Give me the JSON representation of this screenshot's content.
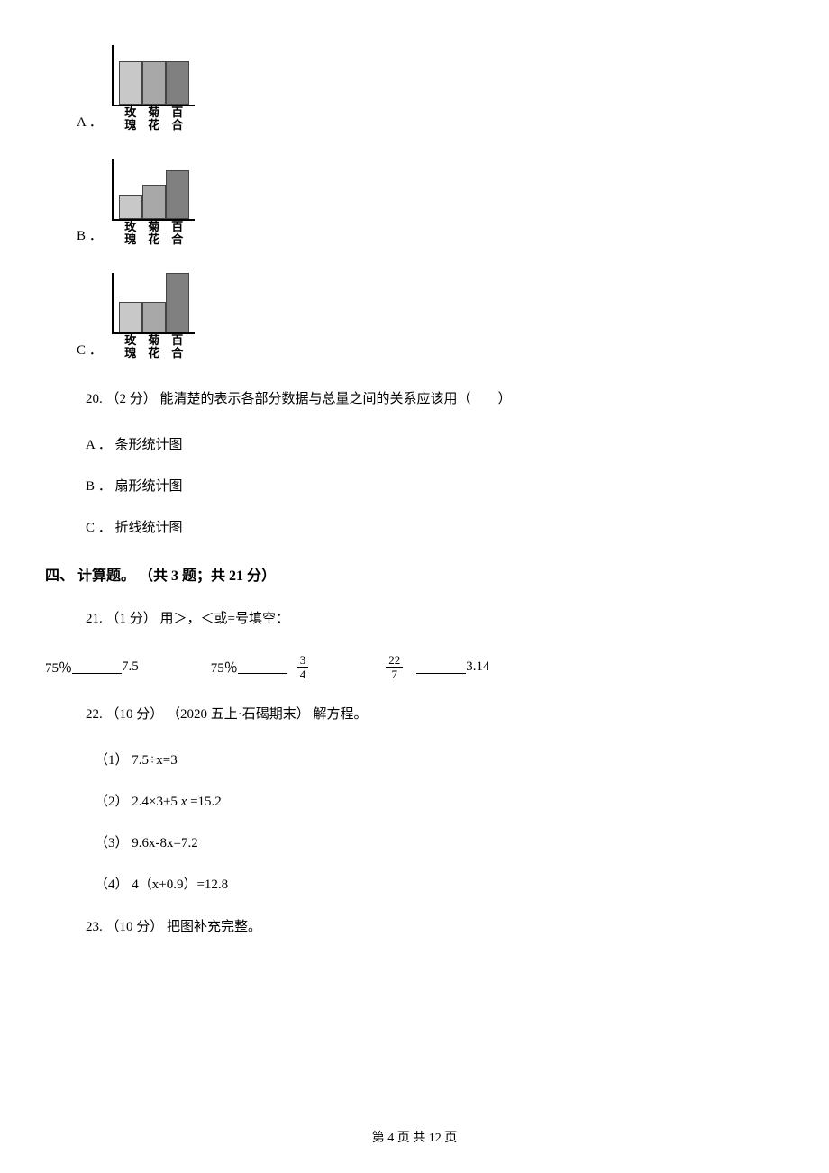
{
  "options": {
    "A": {
      "label": "A ．",
      "bars": [
        {
          "height": 48,
          "color": "#c8c8c8"
        },
        {
          "height": 48,
          "color": "#a8a8a8"
        },
        {
          "height": 48,
          "color": "#808080"
        }
      ],
      "labels": [
        "玫瑰",
        "菊花",
        "百合"
      ]
    },
    "B": {
      "label": "B ．",
      "bars": [
        {
          "height": 26,
          "color": "#c8c8c8"
        },
        {
          "height": 38,
          "color": "#a8a8a8"
        },
        {
          "height": 54,
          "color": "#808080"
        }
      ],
      "labels": [
        "玫瑰",
        "菊花",
        "百合"
      ]
    },
    "C": {
      "label": "C ．",
      "bars": [
        {
          "height": 34,
          "color": "#c8c8c8"
        },
        {
          "height": 34,
          "color": "#a8a8a8"
        },
        {
          "height": 66,
          "color": "#808080"
        }
      ],
      "labels": [
        "玫瑰",
        "菊花",
        "百合"
      ]
    }
  },
  "q20": {
    "text": "20. （2 分） 能清楚的表示各部分数据与总量之间的关系应该用（　　）",
    "optA": "A ． 条形统计图",
    "optB": "B ． 扇形统计图",
    "optC": "C ． 折线统计图"
  },
  "section4": {
    "header": "四、 计算题。 （共 3 题；共 21 分）"
  },
  "q21": {
    "text": "21. （1 分） 用＞，＜或=号填空：",
    "part1_left": "75％",
    "part1_right": "7.5",
    "part2_left": "75％",
    "part2_frac_num": "3",
    "part2_frac_den": "4",
    "part3_frac_num": "22",
    "part3_frac_den": "7",
    "part3_right": "3.14"
  },
  "q22": {
    "text": "22. （10 分） （2020 五上·石碣期末） 解方程。",
    "sub1": "（1）  7.5÷x=3",
    "sub2_pre": "（2）  2.4×3+5 ",
    "sub2_post": " =15.2",
    "sub3": "（3）  9.6x-8x=7.2",
    "sub4": "（4）  4（x+0.9）=12.8"
  },
  "q23": {
    "text": "23. （10 分） 把图补充完整。"
  },
  "footer": "第 4 页 共 12 页"
}
